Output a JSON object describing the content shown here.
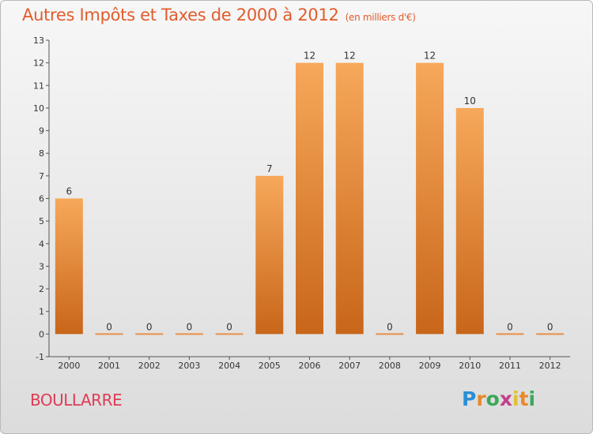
{
  "header": {
    "title": "Autres Impôts et Taxes de 2000 à 2012",
    "unit": "(en milliers d'€)"
  },
  "commune": "BOULLARRE",
  "logo": "Proxiti",
  "colors": {
    "bar_light": "#f7a85a",
    "bar_dark": "#c8661a",
    "title": "#e15c2c",
    "commune": "#de3c56"
  },
  "chart_data": {
    "type": "bar",
    "title": "Autres Impôts et Taxes de 2000 à 2012",
    "subtitle": "(en milliers d'€)",
    "categories": [
      "2000",
      "2001",
      "2002",
      "2003",
      "2004",
      "2005",
      "2006",
      "2007",
      "2008",
      "2009",
      "2010",
      "2011",
      "2012"
    ],
    "values": [
      6,
      0,
      0,
      0,
      0,
      7,
      12,
      12,
      0,
      12,
      10,
      0,
      0
    ],
    "ylim": [
      -1,
      13
    ],
    "yticks": [
      -1,
      0,
      1,
      2,
      3,
      4,
      5,
      6,
      7,
      8,
      9,
      10,
      11,
      12,
      13
    ],
    "grid": false,
    "legend": "none"
  }
}
